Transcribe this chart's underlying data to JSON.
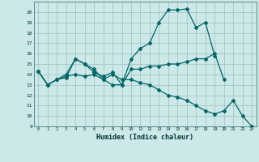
{
  "xlabel": "Humidex (Indice chaleur)",
  "background_color": "#cce8e8",
  "grid_color": "#b0c8c8",
  "line_color": "#006666",
  "xlim": [
    -0.5,
    23.5
  ],
  "ylim": [
    9,
    21
  ],
  "yticks": [
    9,
    10,
    11,
    12,
    13,
    14,
    15,
    16,
    17,
    18,
    19,
    20
  ],
  "xticks": [
    0,
    1,
    2,
    3,
    4,
    5,
    6,
    7,
    8,
    9,
    10,
    11,
    12,
    13,
    14,
    15,
    16,
    17,
    18,
    19,
    20,
    21,
    22,
    23
  ],
  "series1_x": [
    0,
    1,
    2,
    3,
    4,
    5,
    6,
    7,
    8,
    9,
    10,
    11,
    12,
    13,
    14,
    15,
    16,
    17,
    18,
    19
  ],
  "series1_y": [
    14.3,
    13.0,
    13.5,
    13.7,
    15.5,
    15.0,
    14.5,
    13.5,
    13.0,
    13.0,
    15.5,
    16.5,
    17.0,
    19.0,
    20.2,
    20.2,
    20.3,
    18.5,
    19.0,
    15.8
  ],
  "series2_x": [
    0,
    1,
    2,
    3,
    4,
    5,
    6,
    7,
    8,
    9,
    10,
    11,
    12,
    13,
    14,
    15,
    16,
    17,
    18,
    19,
    20
  ],
  "series2_y": [
    14.3,
    13.0,
    13.5,
    14.0,
    15.5,
    15.0,
    14.2,
    13.8,
    14.2,
    13.0,
    14.5,
    14.5,
    14.8,
    14.8,
    15.0,
    15.0,
    15.2,
    15.5,
    15.5,
    16.0,
    13.5
  ],
  "series3_x": [
    0,
    1,
    2,
    3,
    4,
    5,
    6,
    7,
    8,
    9,
    10,
    11,
    12,
    13,
    14,
    15,
    16,
    17,
    18,
    19,
    20,
    21,
    22,
    23
  ],
  "series3_y": [
    14.3,
    13.0,
    13.5,
    13.8,
    14.0,
    13.8,
    14.0,
    13.5,
    14.0,
    13.5,
    13.5,
    13.2,
    13.0,
    12.5,
    12.0,
    11.8,
    11.5,
    11.0,
    10.5,
    10.2,
    10.5,
    11.5,
    10.0,
    9.0
  ]
}
